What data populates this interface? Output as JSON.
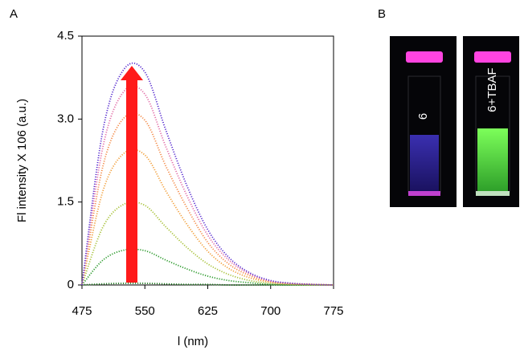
{
  "chart_data": {
    "type": "line",
    "y_label": "Fl intensity X 106 (a.u.)",
    "x_label": "l (nm)",
    "x": [
      475,
      500,
      525,
      550,
      575,
      600,
      625,
      650,
      675,
      700,
      725,
      750,
      775
    ],
    "series": [
      {
        "color": "#1f7a1f",
        "values": [
          0,
          0.02,
          0.03,
          0.03,
          0.02,
          0.01,
          0.01,
          0,
          0,
          0,
          0,
          0,
          0
        ]
      },
      {
        "color": "#2e9b2e",
        "values": [
          0,
          0.45,
          0.63,
          0.62,
          0.45,
          0.29,
          0.16,
          0.08,
          0.04,
          0.01,
          0,
          0,
          0
        ]
      },
      {
        "color": "#a8c23a",
        "values": [
          0,
          1.05,
          1.46,
          1.44,
          1.05,
          0.68,
          0.38,
          0.19,
          0.08,
          0.03,
          0.01,
          0,
          0
        ]
      },
      {
        "color": "#f2a03c",
        "values": [
          0,
          1.7,
          2.38,
          2.35,
          1.7,
          1.1,
          0.61,
          0.3,
          0.13,
          0.05,
          0.02,
          0.01,
          0
        ]
      },
      {
        "color": "#f48c4a",
        "values": [
          0,
          2.15,
          3.02,
          2.98,
          2.15,
          1.4,
          0.77,
          0.38,
          0.17,
          0.06,
          0.02,
          0.01,
          0
        ]
      },
      {
        "color": "#e36fa8",
        "values": [
          0,
          2.5,
          3.5,
          3.45,
          2.5,
          1.62,
          0.9,
          0.45,
          0.2,
          0.07,
          0.03,
          0.01,
          0
        ]
      },
      {
        "color": "#5a2fd0",
        "values": [
          0,
          2.8,
          3.9,
          3.85,
          2.8,
          1.8,
          1.0,
          0.5,
          0.22,
          0.08,
          0.03,
          0.01,
          0
        ]
      }
    ],
    "xlim": [
      475,
      775
    ],
    "xticks": [
      475,
      550,
      625,
      700,
      775
    ],
    "ylim": [
      0,
      4.5
    ],
    "yticks": [
      0,
      1.5,
      {
        "value": 3,
        "label": "3.0"
      },
      4.5
    ]
  },
  "panel_labels": [
    "A",
    "B"
  ],
  "photo": {
    "labels": [
      "6",
      "6+TBAF"
    ]
  }
}
